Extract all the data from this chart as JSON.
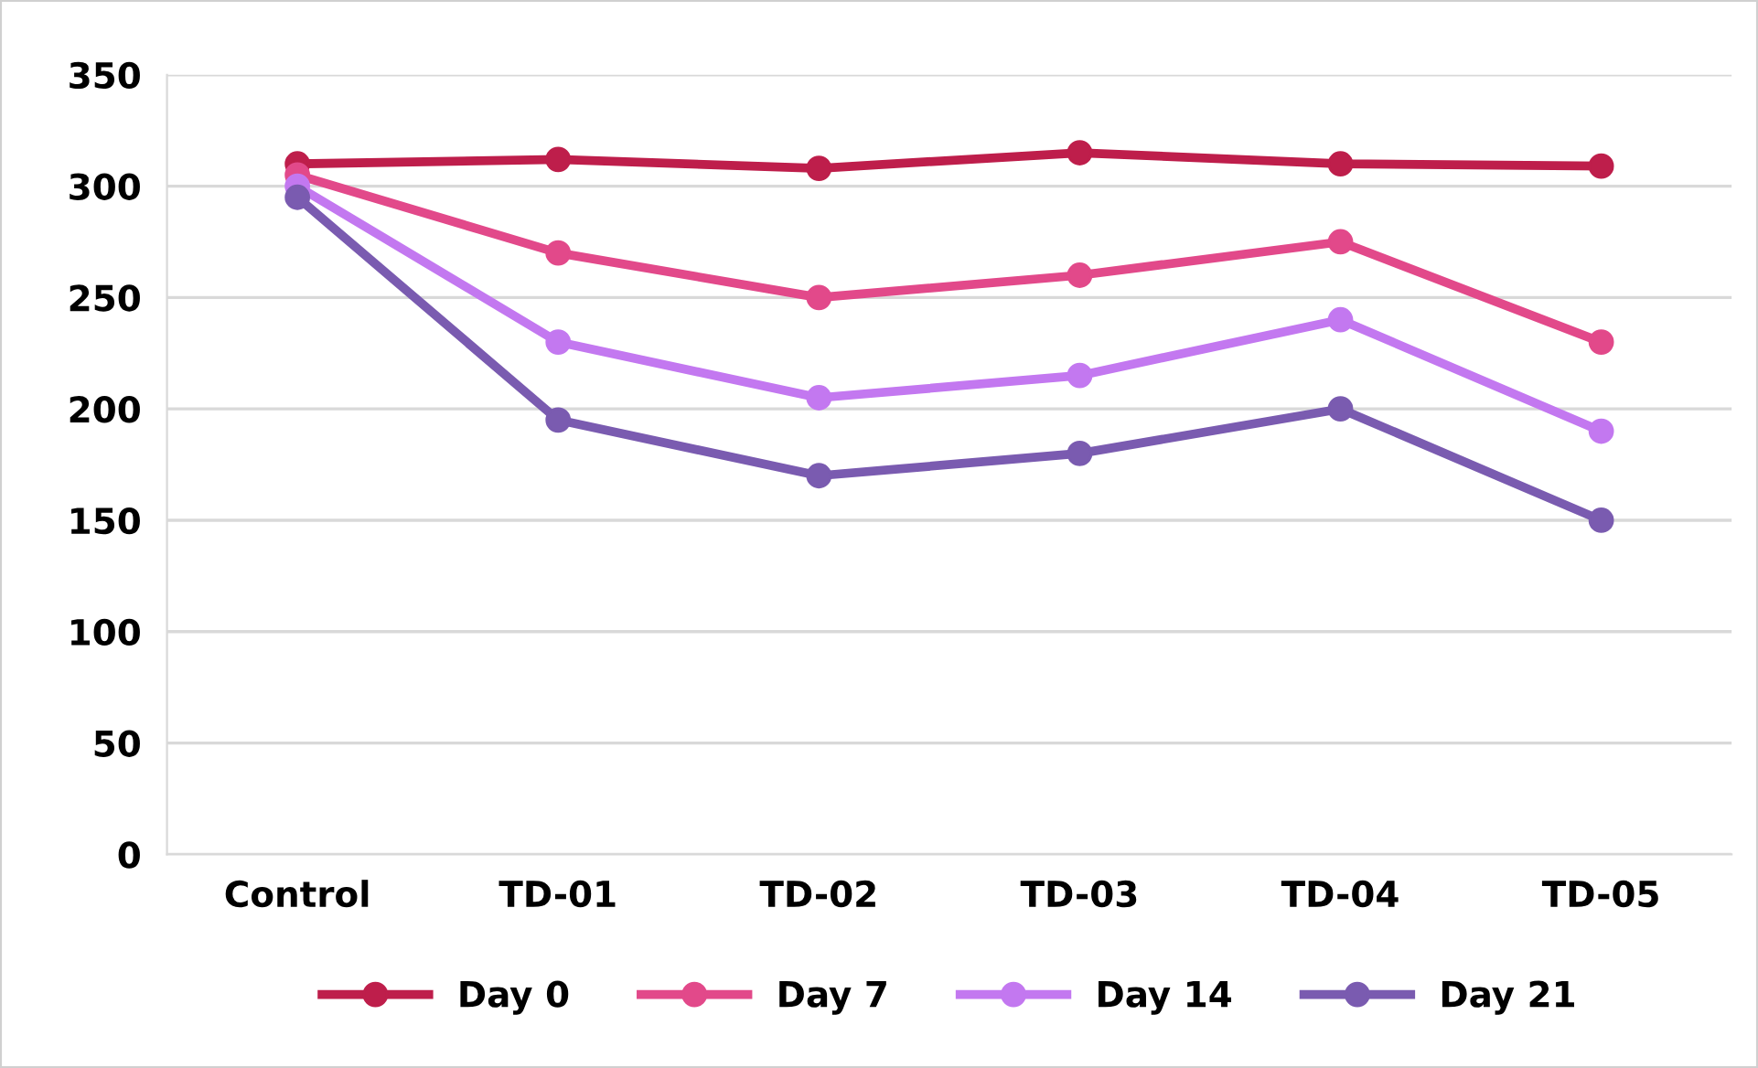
{
  "chart_data": {
    "type": "line",
    "categories": [
      "Control",
      "TD-01",
      "TD-02",
      "TD-03",
      "TD-04",
      "TD-05"
    ],
    "series": [
      {
        "name": "Day 0",
        "color": "#be1e4b",
        "values": [
          310,
          312,
          308,
          315,
          310,
          309
        ]
      },
      {
        "name": "Day 7",
        "color": "#e2498a",
        "values": [
          305,
          270,
          250,
          260,
          275,
          230
        ]
      },
      {
        "name": "Day 14",
        "color": "#c378f0",
        "values": [
          300,
          230,
          205,
          215,
          240,
          190
        ]
      },
      {
        "name": "Day 21",
        "color": "#7a5bb0",
        "values": [
          295,
          195,
          170,
          180,
          200,
          150
        ]
      }
    ],
    "ylim": [
      0,
      350
    ],
    "yticks": [
      0,
      50,
      100,
      150,
      200,
      250,
      300,
      350
    ],
    "grid": "y",
    "legend": "bottom",
    "marker": "circle",
    "line_style": "solid"
  }
}
